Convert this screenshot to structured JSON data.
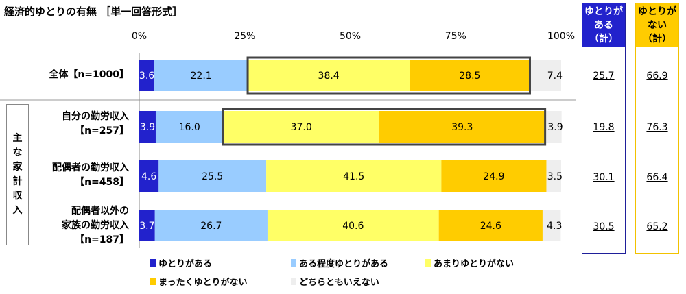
{
  "title": "経済的ゆとりの有無 ［単一回答形式］",
  "group_label": "主な家計収入",
  "summary_headers": {
    "yes": "ゆとりがある（計）",
    "no": "ゆとりがない（計）"
  },
  "colors": {
    "yutori_aru": "#2222cc",
    "teido_aru": "#99ccff",
    "amari_nai": "#ffff66",
    "mattaku_nai": "#ffcc00",
    "dochira": "#eeeeee",
    "yes_border": "#1f1f9a",
    "no_border": "#f2c200"
  },
  "chart_data": {
    "type": "bar",
    "orientation": "horizontal",
    "stacked": true,
    "x_ticks": [
      "0%",
      "25%",
      "50%",
      "75%",
      "100%"
    ],
    "xlim": [
      0,
      100
    ],
    "categories": [
      "全体【n=1000】",
      "自分の勤労収入【n=257】",
      "配偶者の勤労収入【n=458】",
      "配偶者以外の家族の勤労収入【n=187】"
    ],
    "row_labels": [
      [
        "全体【n=1000】"
      ],
      [
        "自分の勤労収入",
        "【n=257】"
      ],
      [
        "配偶者の勤労収入",
        "【n=458】"
      ],
      [
        "配偶者以外の",
        "家族の勤労収入",
        "【n=187】"
      ]
    ],
    "series": [
      {
        "name": "ゆとりがある",
        "values": [
          3.6,
          3.9,
          4.6,
          3.7
        ]
      },
      {
        "name": "ある程度ゆとりがある",
        "values": [
          22.1,
          16.0,
          25.5,
          26.7
        ]
      },
      {
        "name": "あまりゆとりがない",
        "values": [
          38.4,
          37.0,
          41.5,
          40.6
        ]
      },
      {
        "name": "まったくゆとりがない",
        "values": [
          28.5,
          39.3,
          24.9,
          24.6
        ]
      },
      {
        "name": "どちらともいえない",
        "values": [
          7.4,
          3.9,
          3.5,
          4.3
        ]
      }
    ],
    "summary_yes": [
      "25.7",
      "19.8",
      "30.1",
      "30.5"
    ],
    "summary_no": [
      "66.9",
      "76.3",
      "66.4",
      "65.2"
    ],
    "highlighted_rows": [
      0,
      1
    ],
    "legend_position": "bottom"
  }
}
